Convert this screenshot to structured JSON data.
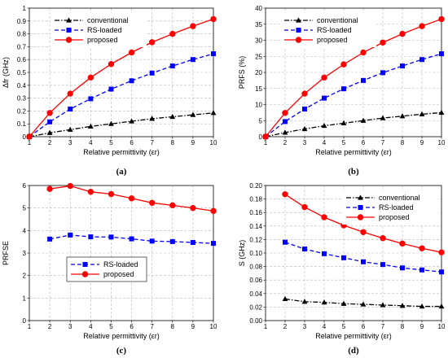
{
  "chart_data": [
    {
      "type": "line",
      "panel_label": "(a)",
      "xlabel": "Relative permittivity (εr)",
      "ylabel": "Δfr (GHz)",
      "xlim": [
        1,
        10
      ],
      "ylim": [
        0,
        1
      ],
      "xticks": [
        "1",
        "2",
        "3",
        "4",
        "5",
        "6",
        "7",
        "8",
        "9",
        "10"
      ],
      "yticks": [
        "0",
        "0.1",
        "0.2",
        "0.3",
        "0.4",
        "0.5",
        "0.6",
        "0.7",
        "0.8",
        "0.9",
        "1"
      ],
      "grid": true,
      "legend": "top-left",
      "series": [
        {
          "name": "conventional",
          "color": "#000000",
          "marker": "triangle",
          "dash": "dashdot",
          "x": [
            1,
            2,
            3,
            4,
            5,
            6,
            7,
            8,
            9,
            10
          ],
          "values": [
            0,
            0.03,
            0.055,
            0.08,
            0.1,
            0.12,
            0.14,
            0.155,
            0.17,
            0.185
          ]
        },
        {
          "name": "RS-loaded",
          "color": "#0000ff",
          "marker": "square",
          "dash": "dashed",
          "x": [
            1,
            2,
            3,
            4,
            5,
            6,
            7,
            8,
            9,
            10
          ],
          "values": [
            0,
            0.115,
            0.215,
            0.295,
            0.37,
            0.435,
            0.495,
            0.55,
            0.6,
            0.645
          ]
        },
        {
          "name": "proposed",
          "color": "#ff0000",
          "marker": "circle",
          "dash": "solid",
          "x": [
            1,
            2,
            3,
            4,
            5,
            6,
            7,
            8,
            9,
            10
          ],
          "values": [
            0,
            0.185,
            0.335,
            0.46,
            0.565,
            0.655,
            0.735,
            0.8,
            0.86,
            0.915
          ]
        }
      ]
    },
    {
      "type": "line",
      "panel_label": "(b)",
      "xlabel": "Relative permittivity (εr)",
      "ylabel": "PRFS (%)",
      "xlim": [
        1,
        10
      ],
      "ylim": [
        0,
        40
      ],
      "xticks": [
        "1",
        "2",
        "3",
        "4",
        "5",
        "6",
        "7",
        "8",
        "9",
        "10"
      ],
      "yticks": [
        "0",
        "5",
        "10",
        "15",
        "20",
        "25",
        "30",
        "35",
        "40"
      ],
      "grid": true,
      "legend": "top-left",
      "series": [
        {
          "name": "conventional",
          "color": "#000000",
          "marker": "triangle",
          "dash": "dashdot",
          "x": [
            1,
            2,
            3,
            4,
            5,
            6,
            7,
            8,
            9,
            10
          ],
          "values": [
            0,
            1.3,
            2.4,
            3.4,
            4.2,
            5.0,
            5.8,
            6.4,
            7.0,
            7.5
          ]
        },
        {
          "name": "RS-loaded",
          "color": "#0000ff",
          "marker": "square",
          "dash": "dashed",
          "x": [
            1,
            2,
            3,
            4,
            5,
            6,
            7,
            8,
            9,
            10
          ],
          "values": [
            0,
            4.7,
            8.6,
            12.0,
            14.9,
            17.5,
            19.9,
            22.0,
            24.0,
            25.8
          ]
        },
        {
          "name": "proposed",
          "color": "#ff0000",
          "marker": "circle",
          "dash": "solid",
          "x": [
            1,
            2,
            3,
            4,
            5,
            6,
            7,
            8,
            9,
            10
          ],
          "values": [
            0,
            7.4,
            13.4,
            18.4,
            22.5,
            26.2,
            29.3,
            32.0,
            34.4,
            36.6
          ]
        }
      ]
    },
    {
      "type": "line",
      "panel_label": "(c)",
      "xlabel": "Relative permittivity (εr)",
      "ylabel": "PRFSE",
      "xlim": [
        1,
        10
      ],
      "ylim": [
        0,
        6
      ],
      "xticks": [
        "1",
        "2",
        "3",
        "4",
        "5",
        "6",
        "7",
        "8",
        "9",
        "10"
      ],
      "yticks": [
        "0",
        "1",
        "2",
        "3",
        "4",
        "5",
        "6"
      ],
      "grid": true,
      "legend": "bottom-center",
      "series": [
        {
          "name": "RS-loaded",
          "color": "#0000ff",
          "marker": "square",
          "dash": "dashed",
          "x": [
            2,
            3,
            4,
            5,
            6,
            7,
            8,
            9,
            10
          ],
          "values": [
            3.62,
            3.8,
            3.72,
            3.71,
            3.63,
            3.53,
            3.51,
            3.47,
            3.43
          ]
        },
        {
          "name": "proposed",
          "color": "#ff0000",
          "marker": "circle",
          "dash": "solid",
          "x": [
            2,
            3,
            4,
            5,
            6,
            7,
            8,
            9,
            10
          ],
          "values": [
            5.85,
            5.98,
            5.72,
            5.62,
            5.43,
            5.23,
            5.12,
            5.0,
            4.87
          ]
        }
      ]
    },
    {
      "type": "line",
      "panel_label": "(d)",
      "xlabel": "Relative permittivity (εr)",
      "ylabel": "S (GHz)",
      "xlim": [
        1,
        10
      ],
      "ylim": [
        0,
        0.2
      ],
      "xticks": [
        "1",
        "2",
        "3",
        "4",
        "5",
        "6",
        "7",
        "8",
        "9",
        "10"
      ],
      "yticks": [
        "0.00",
        "0.02",
        "0.04",
        "0.06",
        "0.08",
        "0.10",
        "0.12",
        "0.14",
        "0.16",
        "0.18",
        "0.20"
      ],
      "grid": true,
      "legend": "top-right",
      "series": [
        {
          "name": "conventional",
          "color": "#000000",
          "marker": "triangle",
          "dash": "dashdot",
          "x": [
            2,
            3,
            4,
            5,
            6,
            7,
            8,
            9,
            10
          ],
          "values": [
            0.032,
            0.028,
            0.027,
            0.025,
            0.024,
            0.023,
            0.022,
            0.021,
            0.021
          ]
        },
        {
          "name": "RS-loaded",
          "color": "#0000ff",
          "marker": "square",
          "dash": "dashed",
          "x": [
            2,
            3,
            4,
            5,
            6,
            7,
            8,
            9,
            10
          ],
          "values": [
            0.116,
            0.106,
            0.099,
            0.093,
            0.087,
            0.083,
            0.078,
            0.075,
            0.072
          ]
        },
        {
          "name": "proposed",
          "color": "#ff0000",
          "marker": "circle",
          "dash": "solid",
          "x": [
            2,
            3,
            4,
            5,
            6,
            7,
            8,
            9,
            10
          ],
          "values": [
            0.187,
            0.168,
            0.153,
            0.141,
            0.131,
            0.122,
            0.114,
            0.107,
            0.101
          ]
        }
      ]
    }
  ]
}
